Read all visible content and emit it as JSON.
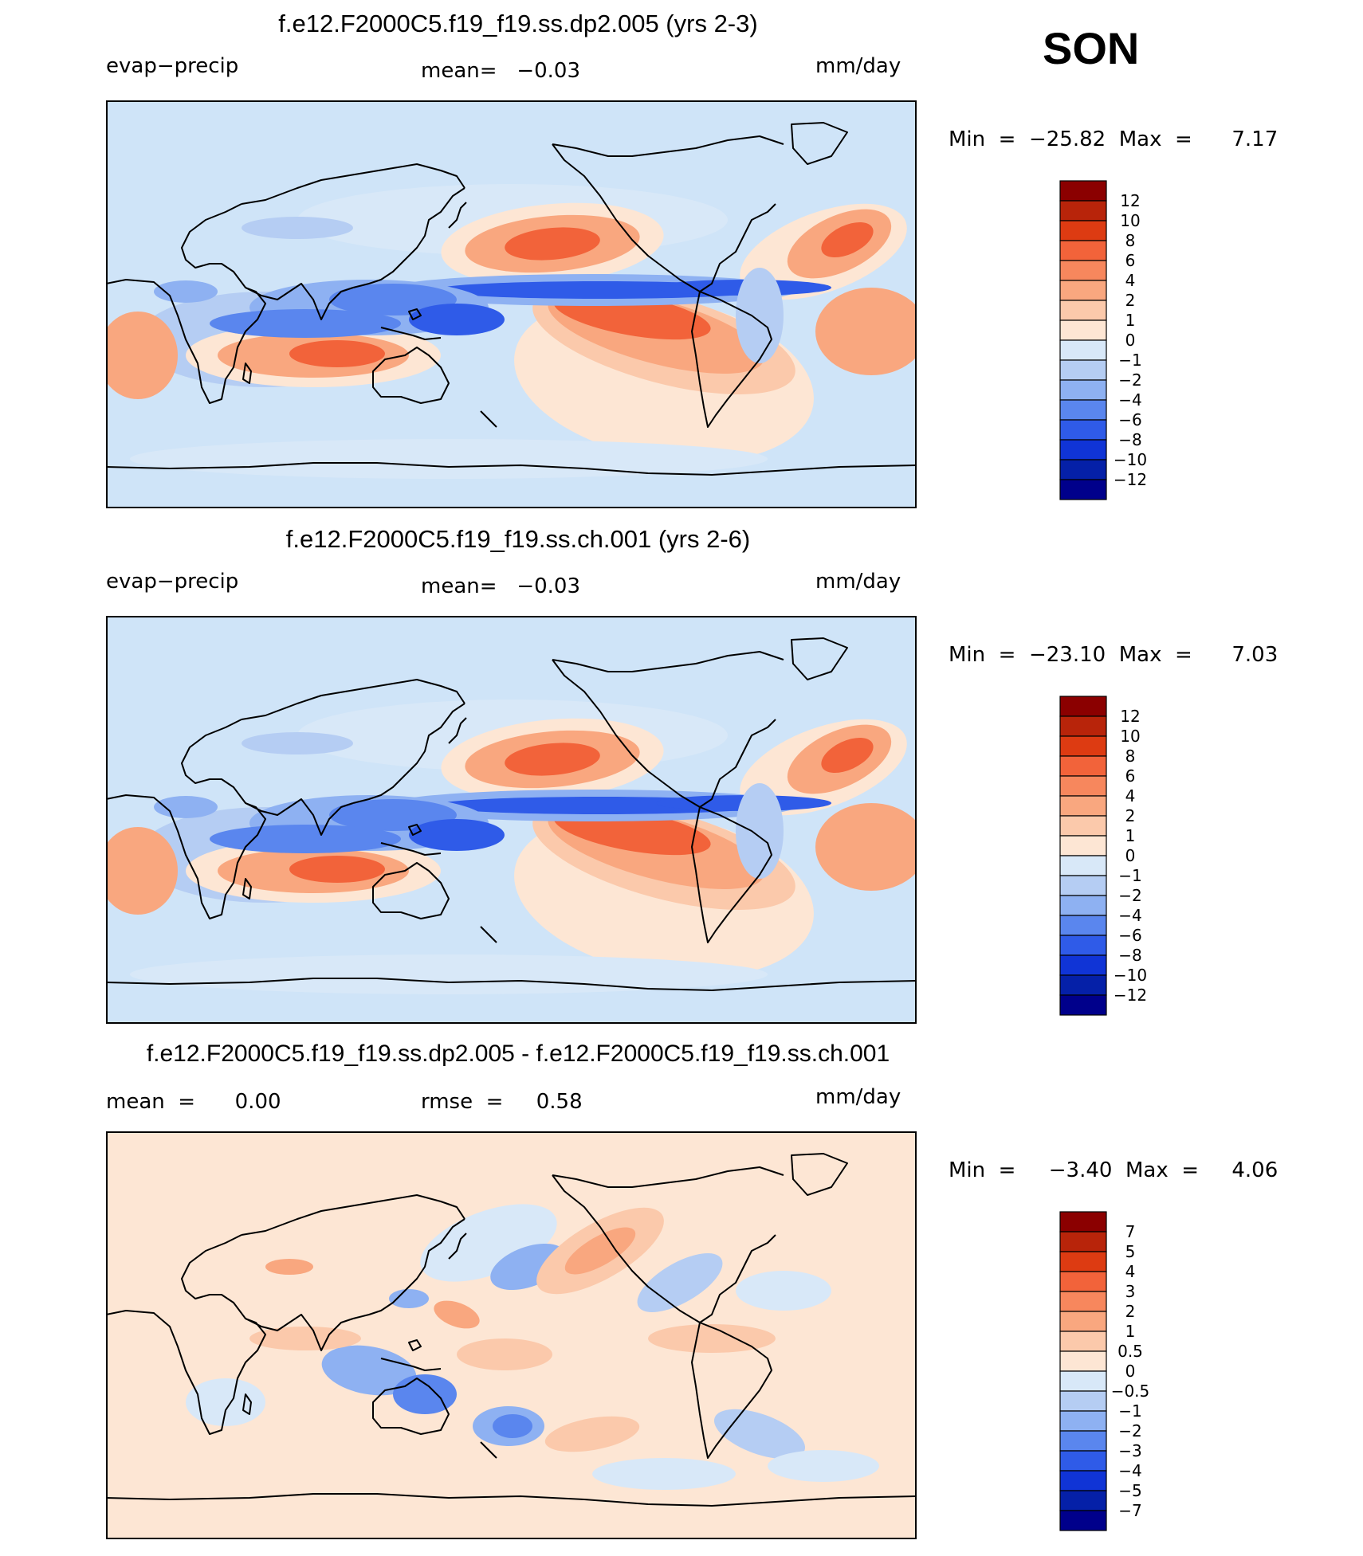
{
  "season": "SON",
  "colors": {
    "ocean": "#cfe4f8",
    "land_line": "#000000"
  },
  "panels": [
    {
      "id": "dp2",
      "title": "f.e12.F2000C5.f19_f19.ss.dp2.005 (yrs 2-3)",
      "left_label": "evap−precip",
      "center_label": "mean=   −0.03",
      "units": "mm/day",
      "min_max": "Min  =  −25.82  Max  =      7.17",
      "colorbar": {
        "labels": [
          "12",
          "10",
          "8",
          "6",
          "4",
          "2",
          "1",
          "0",
          "−1",
          "−2",
          "−4",
          "−6",
          "−8",
          "−10",
          "−12"
        ],
        "colors": [
          "#8b0000",
          "#b8240a",
          "#dd3b12",
          "#f2633a",
          "#f7875d",
          "#f9a77f",
          "#fbc9ab",
          "#fde6d4",
          "#d8e8f8",
          "#b5cdf3",
          "#8eb1f2",
          "#5a86ee",
          "#2f5be8",
          "#1034d6",
          "#0520a8",
          "#00008b"
        ]
      }
    },
    {
      "id": "ch",
      "title": "f.e12.F2000C5.f19_f19.ss.ch.001 (yrs 2-6)",
      "left_label": "evap−precip",
      "center_label": "mean=   −0.03",
      "units": "mm/day",
      "min_max": "Min  =  −23.10  Max  =      7.03",
      "colorbar": {
        "labels": [
          "12",
          "10",
          "8",
          "6",
          "4",
          "2",
          "1",
          "0",
          "−1",
          "−2",
          "−4",
          "−6",
          "−8",
          "−10",
          "−12"
        ],
        "colors": [
          "#8b0000",
          "#b8240a",
          "#dd3b12",
          "#f2633a",
          "#f7875d",
          "#f9a77f",
          "#fbc9ab",
          "#fde6d4",
          "#d8e8f8",
          "#b5cdf3",
          "#8eb1f2",
          "#5a86ee",
          "#2f5be8",
          "#1034d6",
          "#0520a8",
          "#00008b"
        ]
      }
    },
    {
      "id": "diff",
      "title": "f.e12.F2000C5.f19_f19.ss.dp2.005 - f.e12.F2000C5.f19_f19.ss.ch.001",
      "left_label": "mean  =      0.00",
      "center_label": "rmse  =     0.58",
      "units": "mm/day",
      "min_max": "Min  =     −3.40  Max  =     4.06",
      "colorbar": {
        "labels": [
          "7",
          "5",
          "4",
          "3",
          "2",
          "1",
          "0.5",
          "0",
          "−0.5",
          "−1",
          "−2",
          "−3",
          "−4",
          "−5",
          "−7"
        ],
        "colors": [
          "#8b0000",
          "#b8240a",
          "#dd3b12",
          "#f2633a",
          "#f7875d",
          "#f9a77f",
          "#fbc9ab",
          "#fde6d4",
          "#d8e8f8",
          "#b5cdf3",
          "#8eb1f2",
          "#5a86ee",
          "#2f5be8",
          "#1034d6",
          "#0520a8",
          "#00008b"
        ]
      }
    }
  ]
}
